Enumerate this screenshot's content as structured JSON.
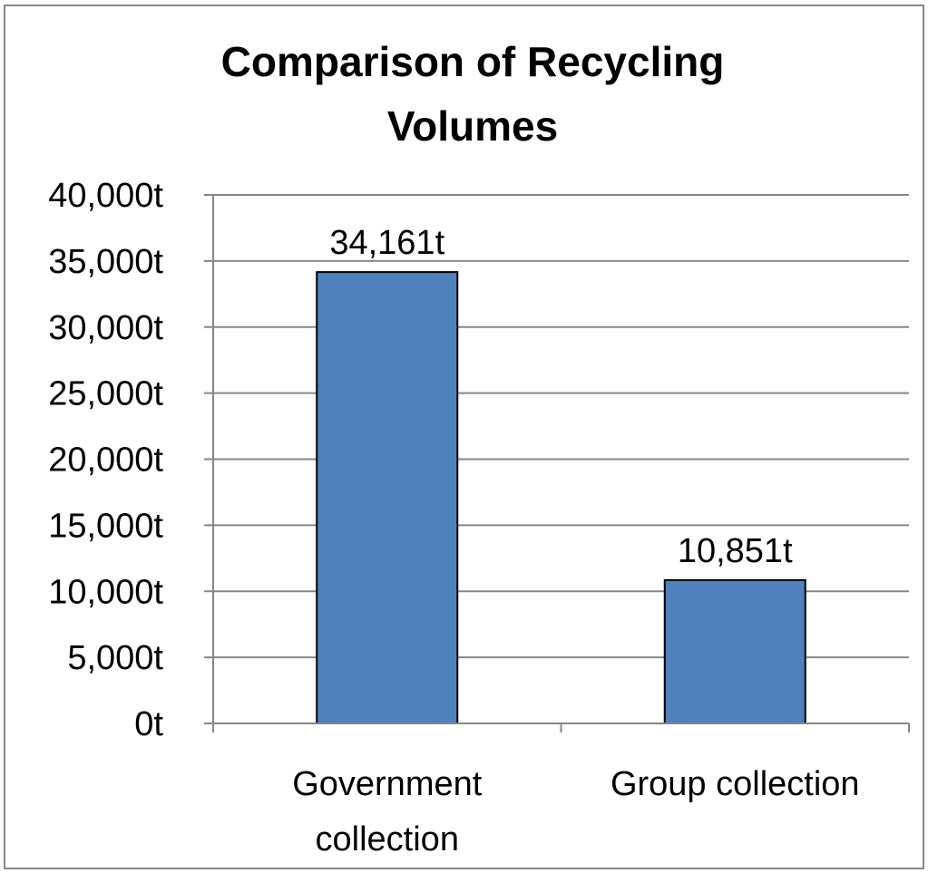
{
  "chart_data": {
    "type": "bar",
    "title_lines": [
      "Comparison of Recycling",
      "Volumes"
    ],
    "categories": [
      [
        "Government",
        "collection"
      ],
      [
        "Group collection"
      ]
    ],
    "values": [
      34161,
      10851
    ],
    "data_labels": [
      "34,161t",
      "10,851t"
    ],
    "ylim": [
      0,
      40000
    ],
    "yticks": [
      0,
      5000,
      10000,
      15000,
      20000,
      25000,
      30000,
      35000,
      40000
    ],
    "ytick_labels": [
      "0t",
      "5,000t",
      "10,000t",
      "15,000t",
      "20,000t",
      "25,000t",
      "30,000t",
      "35,000t",
      "40,000t"
    ],
    "grid": true,
    "legend": "none",
    "colors": {
      "bar_fill": "#4f81bd",
      "bar_stroke": "#000000",
      "gridline": "#868686",
      "axis": "#868686"
    }
  }
}
